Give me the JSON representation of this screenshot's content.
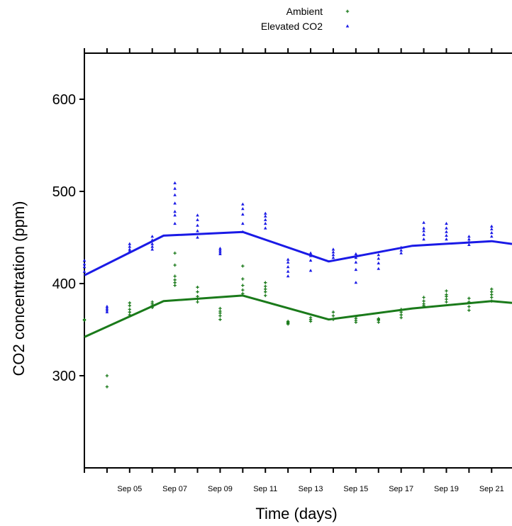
{
  "chart_data": {
    "type": "scatter",
    "title": "",
    "xlabel": "Time (days)",
    "ylabel": "CO2 concentration (ppm)",
    "xlim": [
      "2000-09-03",
      "2000-09-21.9"
    ],
    "ylim": [
      200,
      650
    ],
    "yticks": [
      300,
      400,
      500,
      600
    ],
    "xticks": [
      "Sep 05",
      "Sep 07",
      "Sep 09",
      "Sep 11",
      "Sep 13",
      "Sep 15",
      "Sep 17",
      "Sep 19",
      "Sep 21"
    ],
    "grid": false,
    "legend_position": "top-center",
    "series": [
      {
        "name": "Ambient",
        "color": "#1a7a1a",
        "marker": "plus",
        "points": [
          [
            "2000-09-03",
            360
          ],
          [
            "2000-09-03",
            361
          ],
          [
            "2000-09-04",
            288
          ],
          [
            "2000-09-04",
            300
          ],
          [
            "2000-09-05",
            366
          ],
          [
            "2000-09-05",
            369
          ],
          [
            "2000-09-05",
            372
          ],
          [
            "2000-09-05",
            376
          ],
          [
            "2000-09-05",
            379
          ],
          [
            "2000-09-06",
            374
          ],
          [
            "2000-09-06",
            376
          ],
          [
            "2000-09-06",
            378
          ],
          [
            "2000-09-06",
            380
          ],
          [
            "2000-09-07",
            398
          ],
          [
            "2000-09-07",
            401
          ],
          [
            "2000-09-07",
            404
          ],
          [
            "2000-09-07",
            408
          ],
          [
            "2000-09-07",
            420
          ],
          [
            "2000-09-07",
            433
          ],
          [
            "2000-09-08",
            380
          ],
          [
            "2000-09-08",
            383
          ],
          [
            "2000-09-08",
            386
          ],
          [
            "2000-09-08",
            391
          ],
          [
            "2000-09-08",
            396
          ],
          [
            "2000-09-09",
            361
          ],
          [
            "2000-09-09",
            365
          ],
          [
            "2000-09-09",
            368
          ],
          [
            "2000-09-09",
            370
          ],
          [
            "2000-09-09",
            373
          ],
          [
            "2000-09-10",
            389
          ],
          [
            "2000-09-10",
            393
          ],
          [
            "2000-09-10",
            398
          ],
          [
            "2000-09-10",
            405
          ],
          [
            "2000-09-10",
            419
          ],
          [
            "2000-09-11",
            387
          ],
          [
            "2000-09-11",
            391
          ],
          [
            "2000-09-11",
            394
          ],
          [
            "2000-09-11",
            397
          ],
          [
            "2000-09-11",
            401
          ],
          [
            "2000-09-12",
            356
          ],
          [
            "2000-09-12",
            357
          ],
          [
            "2000-09-12",
            358
          ],
          [
            "2000-09-12",
            359
          ],
          [
            "2000-09-13",
            359
          ],
          [
            "2000-09-13",
            361
          ],
          [
            "2000-09-13",
            363
          ],
          [
            "2000-09-14",
            361
          ],
          [
            "2000-09-14",
            365
          ],
          [
            "2000-09-14",
            369
          ],
          [
            "2000-09-15",
            358
          ],
          [
            "2000-09-15",
            360
          ],
          [
            "2000-09-15",
            362
          ],
          [
            "2000-09-15",
            364
          ],
          [
            "2000-09-16",
            358
          ],
          [
            "2000-09-16",
            360
          ],
          [
            "2000-09-16",
            361
          ],
          [
            "2000-09-16",
            362
          ],
          [
            "2000-09-17",
            363
          ],
          [
            "2000-09-17",
            366
          ],
          [
            "2000-09-17",
            369
          ],
          [
            "2000-09-17",
            372
          ],
          [
            "2000-09-18",
            376
          ],
          [
            "2000-09-18",
            378
          ],
          [
            "2000-09-18",
            381
          ],
          [
            "2000-09-18",
            385
          ],
          [
            "2000-09-19",
            380
          ],
          [
            "2000-09-19",
            383
          ],
          [
            "2000-09-19",
            386
          ],
          [
            "2000-09-19",
            388
          ],
          [
            "2000-09-19",
            392
          ],
          [
            "2000-09-20",
            371
          ],
          [
            "2000-09-20",
            375
          ],
          [
            "2000-09-20",
            380
          ],
          [
            "2000-09-20",
            384
          ],
          [
            "2000-09-21",
            381
          ],
          [
            "2000-09-21",
            385
          ],
          [
            "2000-09-21",
            388
          ],
          [
            "2000-09-21",
            391
          ],
          [
            "2000-09-21",
            394
          ]
        ],
        "trend": [
          [
            "2000-09-03",
            342
          ],
          [
            "2000-09-06.5",
            381
          ],
          [
            "2000-09-10",
            387
          ],
          [
            "2000-09-13.8",
            361
          ],
          [
            "2000-09-17.5",
            373
          ],
          [
            "2000-09-21",
            381
          ],
          [
            "2000-09-21.9",
            379
          ]
        ]
      },
      {
        "name": "Elevated CO2",
        "color": "#1a1ae6",
        "marker": "triangle",
        "points": [
          [
            "2000-09-03",
            413
          ],
          [
            "2000-09-03",
            418
          ],
          [
            "2000-09-03",
            421
          ],
          [
            "2000-09-03",
            425
          ],
          [
            "2000-09-04",
            369
          ],
          [
            "2000-09-04",
            371
          ],
          [
            "2000-09-04",
            373
          ],
          [
            "2000-09-04",
            375
          ],
          [
            "2000-09-05",
            435
          ],
          [
            "2000-09-05",
            437
          ],
          [
            "2000-09-05",
            440
          ],
          [
            "2000-09-05",
            443
          ],
          [
            "2000-09-06",
            437
          ],
          [
            "2000-09-06",
            440
          ],
          [
            "2000-09-06",
            443
          ],
          [
            "2000-09-06",
            447
          ],
          [
            "2000-09-06",
            451
          ],
          [
            "2000-09-07",
            465
          ],
          [
            "2000-09-07",
            474
          ],
          [
            "2000-09-07",
            478
          ],
          [
            "2000-09-07",
            487
          ],
          [
            "2000-09-07",
            496
          ],
          [
            "2000-09-07",
            503
          ],
          [
            "2000-09-07",
            509
          ],
          [
            "2000-09-08",
            450
          ],
          [
            "2000-09-08",
            457
          ],
          [
            "2000-09-08",
            463
          ],
          [
            "2000-09-08",
            469
          ],
          [
            "2000-09-08",
            474
          ],
          [
            "2000-09-09",
            432
          ],
          [
            "2000-09-09",
            434
          ],
          [
            "2000-09-09",
            436
          ],
          [
            "2000-09-09",
            438
          ],
          [
            "2000-09-10",
            456
          ],
          [
            "2000-09-10",
            465
          ],
          [
            "2000-09-10",
            475
          ],
          [
            "2000-09-10",
            481
          ],
          [
            "2000-09-10",
            486
          ],
          [
            "2000-09-11",
            460
          ],
          [
            "2000-09-11",
            465
          ],
          [
            "2000-09-11",
            469
          ],
          [
            "2000-09-11",
            473
          ],
          [
            "2000-09-11",
            476
          ],
          [
            "2000-09-12",
            408
          ],
          [
            "2000-09-12",
            413
          ],
          [
            "2000-09-12",
            418
          ],
          [
            "2000-09-12",
            423
          ],
          [
            "2000-09-12",
            426
          ],
          [
            "2000-09-13",
            414
          ],
          [
            "2000-09-13",
            425
          ],
          [
            "2000-09-13",
            430
          ],
          [
            "2000-09-13",
            433
          ],
          [
            "2000-09-14",
            428
          ],
          [
            "2000-09-14",
            431
          ],
          [
            "2000-09-14",
            434
          ],
          [
            "2000-09-14",
            437
          ],
          [
            "2000-09-15",
            401
          ],
          [
            "2000-09-15",
            415
          ],
          [
            "2000-09-15",
            423
          ],
          [
            "2000-09-15",
            428
          ],
          [
            "2000-09-15",
            432
          ],
          [
            "2000-09-16",
            416
          ],
          [
            "2000-09-16",
            422
          ],
          [
            "2000-09-16",
            427
          ],
          [
            "2000-09-16",
            431
          ],
          [
            "2000-09-17",
            433
          ],
          [
            "2000-09-17",
            436
          ],
          [
            "2000-09-17",
            439
          ],
          [
            "2000-09-18",
            448
          ],
          [
            "2000-09-18",
            453
          ],
          [
            "2000-09-18",
            457
          ],
          [
            "2000-09-18",
            460
          ],
          [
            "2000-09-18",
            466
          ],
          [
            "2000-09-19",
            448
          ],
          [
            "2000-09-19",
            452
          ],
          [
            "2000-09-19",
            456
          ],
          [
            "2000-09-19",
            460
          ],
          [
            "2000-09-19",
            465
          ],
          [
            "2000-09-20",
            442
          ],
          [
            "2000-09-20",
            445
          ],
          [
            "2000-09-20",
            448
          ],
          [
            "2000-09-20",
            451
          ],
          [
            "2000-09-21",
            451
          ],
          [
            "2000-09-21",
            455
          ],
          [
            "2000-09-21",
            459
          ],
          [
            "2000-09-21",
            462
          ]
        ],
        "trend": [
          [
            "2000-09-03",
            409
          ],
          [
            "2000-09-06.5",
            452
          ],
          [
            "2000-09-10",
            456
          ],
          [
            "2000-09-13.8",
            424
          ],
          [
            "2000-09-17.5",
            441
          ],
          [
            "2000-09-21",
            446
          ],
          [
            "2000-09-21.9",
            443
          ]
        ]
      }
    ]
  }
}
